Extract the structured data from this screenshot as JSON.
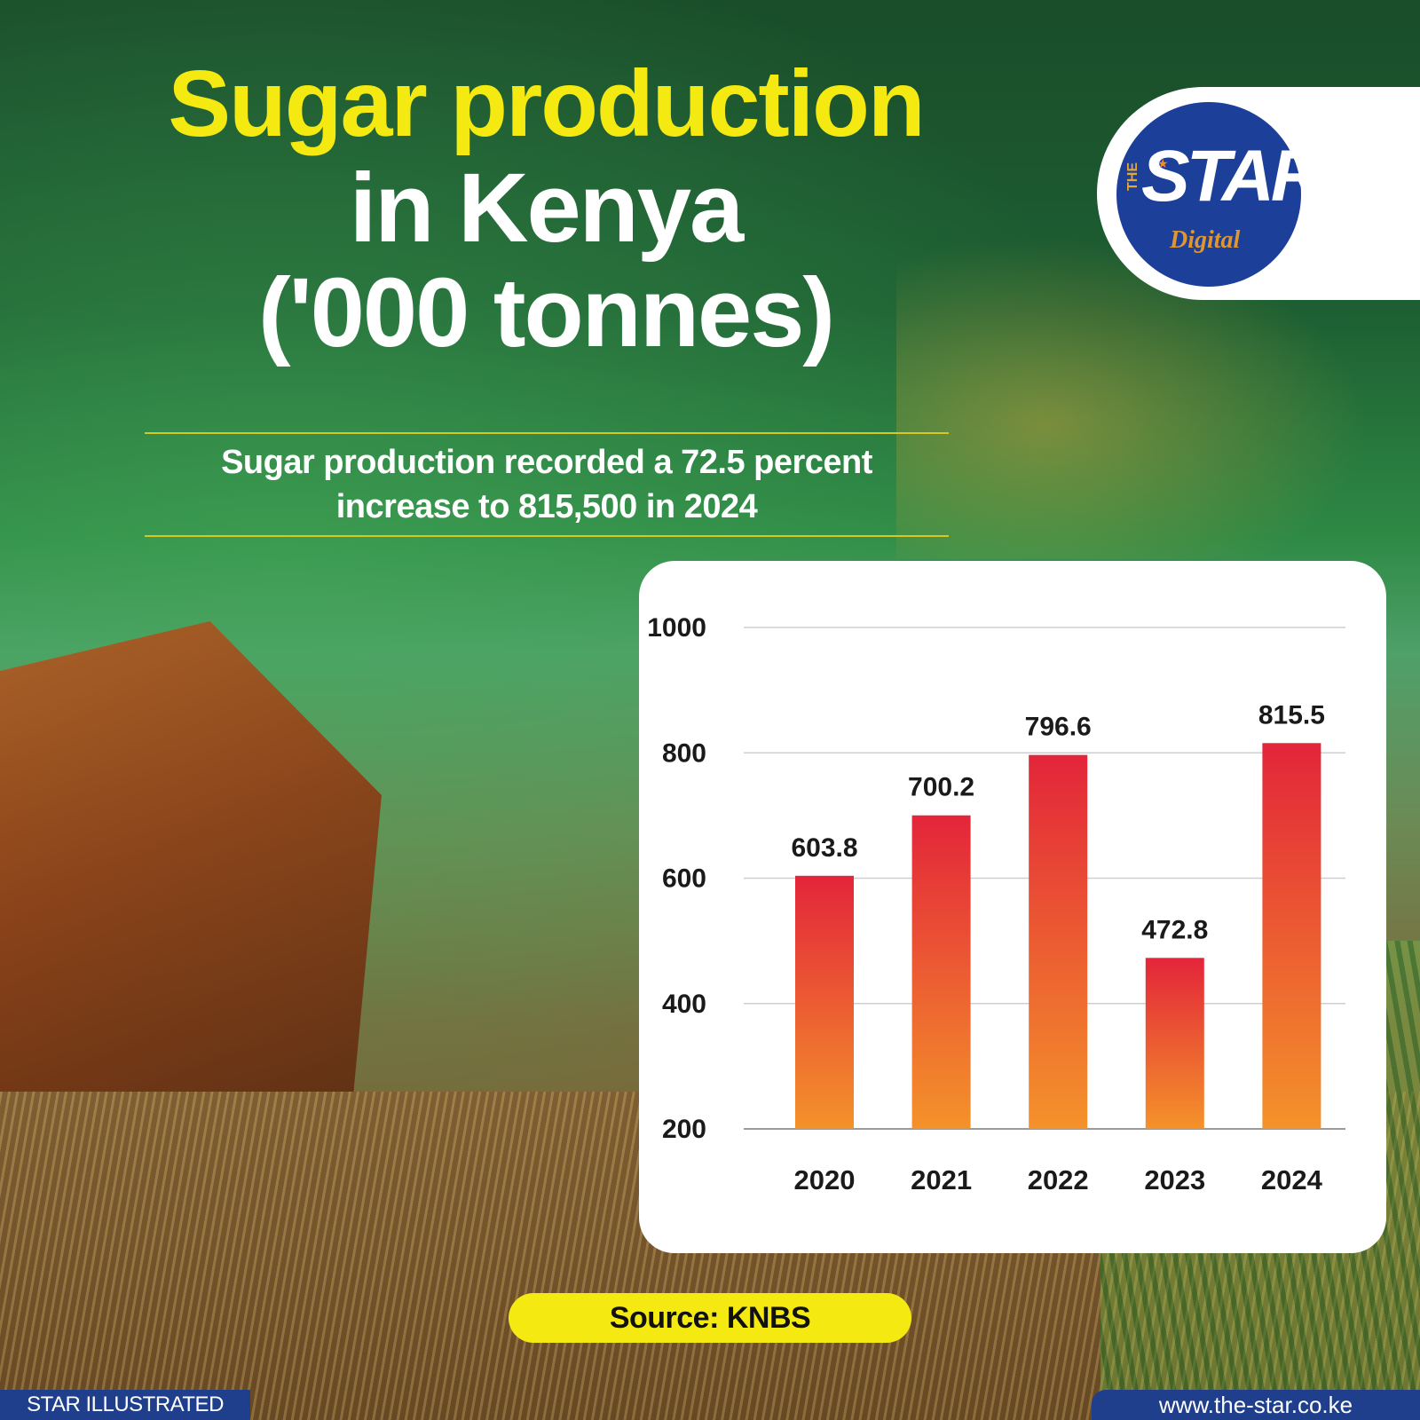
{
  "title": {
    "line1": "Sugar production",
    "line2": "in Kenya",
    "line3": "('000 tonnes)"
  },
  "subtitle": "Sugar production recorded a 72.5 percent increase to 815,500 in 2024",
  "logo": {
    "the": "THE",
    "star": "STAR",
    "digital": "Digital"
  },
  "source": "Source: KNBS",
  "footer": {
    "left": "STAR ILLUSTRATED",
    "right": "www.the-star.co.ke"
  },
  "colors": {
    "title_accent": "#f4ea12",
    "bar_top": "#e3253a",
    "bar_bottom": "#f4922a",
    "brand_blue": "#1f3f8c"
  },
  "chart_data": {
    "type": "bar",
    "categories": [
      "2020",
      "2021",
      "2022",
      "2023",
      "2024"
    ],
    "values": [
      603.8,
      700.2,
      796.6,
      472.8,
      815.5
    ],
    "value_labels": [
      "603.8",
      "700.2",
      "796.6",
      "472.8",
      "815.5"
    ],
    "y_ticks": [
      200,
      400,
      600,
      800,
      1000
    ],
    "ylim": [
      200,
      1000
    ],
    "grid": true,
    "legend": "none",
    "title": "",
    "xlabel": "",
    "ylabel": ""
  }
}
